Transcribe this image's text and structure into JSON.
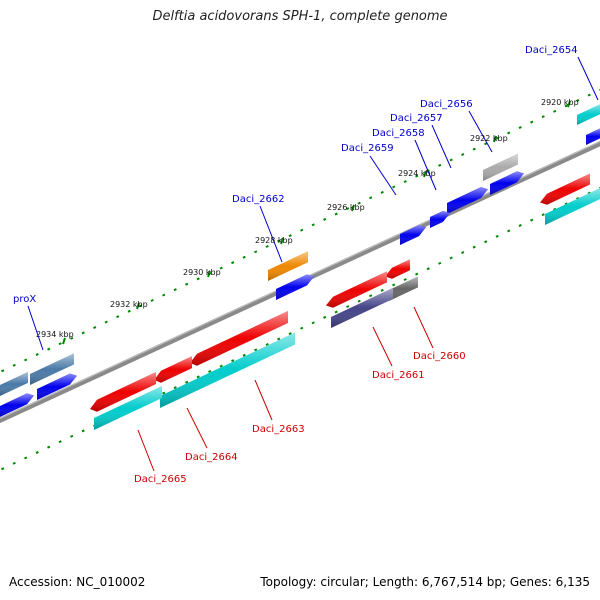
{
  "title": "Delftia acidovorans SPH-1, complete genome",
  "accession": "Accession: NC_010002",
  "summary": "Topology: circular; Length: 6,767,514 bp; Genes: 6,135",
  "colors": {
    "blue": "#0000ee",
    "red": "#ee0000",
    "cyan": "#00cccc",
    "steelblue": "#4a7aa8",
    "orange": "#ee8800",
    "grey": "#aaaaaa",
    "darkgrey": "#666666",
    "slate": "#444488",
    "label_blue": "#0000cc",
    "label_red": "#cc0000",
    "tick": "#008800"
  },
  "kbp_labels": [
    "2920 kbp",
    "2922 kbp",
    "2924 kbp",
    "2926 kbp",
    "2928 kbp",
    "2930 kbp",
    "2932 kbp",
    "2934 kbp"
  ],
  "gene_labels_upper": [
    "Daci_2654",
    "Daci_2656",
    "Daci_2657",
    "Daci_2658",
    "Daci_2659",
    "Daci_2662",
    "proX"
  ],
  "gene_labels_lower": [
    "Daci_2660",
    "Daci_2661",
    "Daci_2663",
    "Daci_2664",
    "Daci_2665"
  ]
}
